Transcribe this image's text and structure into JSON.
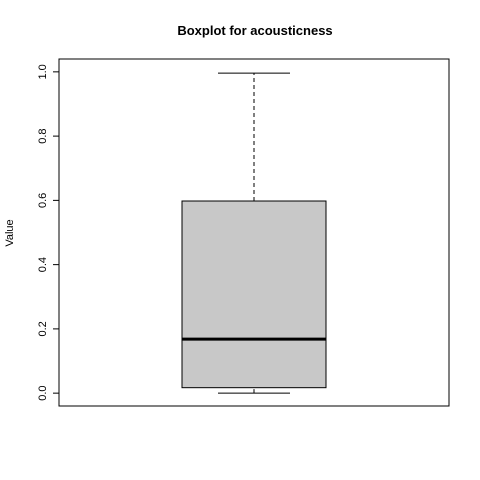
{
  "chart_data": {
    "type": "boxplot",
    "title": "Boxplot for acousticness",
    "xlabel": "",
    "ylabel": "Value",
    "ylim": [
      -0.04,
      1.04
    ],
    "y_ticks": [
      0.0,
      0.2,
      0.4,
      0.6,
      0.8,
      1.0
    ],
    "y_tick_labels": [
      "0.0",
      "0.2",
      "0.4",
      "0.6",
      "0.8",
      "1.0"
    ],
    "grid": false,
    "series": [
      {
        "min": 0.0,
        "q1": 0.017,
        "median": 0.168,
        "q3": 0.598,
        "max": 0.996
      }
    ],
    "colors": {
      "box_fill": "#c8c8c8",
      "stroke": "#000000"
    }
  }
}
